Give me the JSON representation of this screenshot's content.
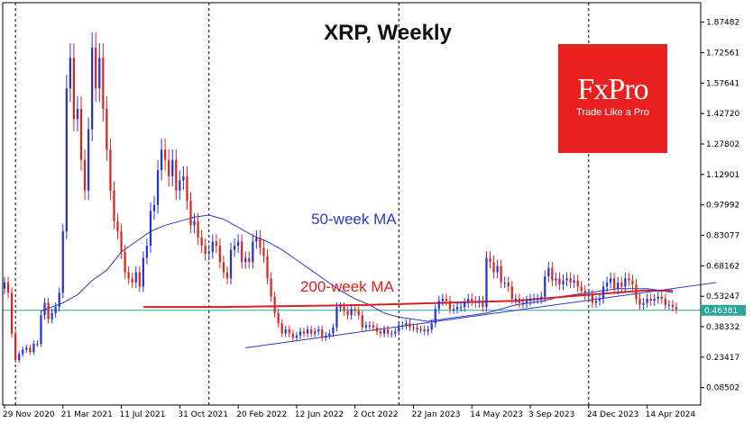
{
  "chart_data": {
    "type": "candlestick",
    "title": "XRP, Weekly",
    "xlabel": "",
    "ylabel": "",
    "colors": {
      "up": "#2433d6",
      "down": "#e0221c",
      "ma50": "#2b3ac4",
      "ma200": "#d92121",
      "current_line": "#2aa79a",
      "trendline": "#2b3ac4"
    },
    "ylim": [
      0.0,
      1.97
    ],
    "y_ticks": [
      {
        "value": 1.87482,
        "label": "1.87482"
      },
      {
        "value": 1.72561,
        "label": "1.72561"
      },
      {
        "value": 1.57641,
        "label": "1.57641"
      },
      {
        "value": 1.4272,
        "label": "1.42720"
      },
      {
        "value": 1.27802,
        "label": "1.27802"
      },
      {
        "value": 1.12901,
        "label": "1.12901"
      },
      {
        "value": 0.97992,
        "label": "0.97992"
      },
      {
        "value": 0.83077,
        "label": "0.83077"
      },
      {
        "value": 0.68162,
        "label": "0.68162"
      },
      {
        "value": 0.53247,
        "label": "0.53247"
      },
      {
        "value": 0.38332,
        "label": "0.38332"
      },
      {
        "value": 0.23417,
        "label": "0.23417"
      },
      {
        "value": 0.08502,
        "label": "0.08502"
      }
    ],
    "x_labels": [
      "29 Nov 2020",
      "21 Mar 2021",
      "11 Jul 2021",
      "31 Oct 2021",
      "20 Feb 2022",
      "12 Jun 2022",
      "2 Oct 2022",
      "22 Jan 2023",
      "14 May 2023",
      "3 Sep 2023",
      "24 Dec 2023",
      "14 Apr 2024"
    ],
    "x_label_weeks": [
      0,
      16,
      32,
      48,
      64,
      80,
      96,
      112,
      128,
      144,
      160,
      176
    ],
    "year_separators": [
      3,
      56,
      108,
      160
    ],
    "current_price": {
      "value": 0.46381,
      "label": "0.46381"
    },
    "annotations": [
      {
        "text": "50-week MA",
        "week": 84,
        "value": 0.885,
        "color": "ma50"
      },
      {
        "text": "200-week MA",
        "week": 81,
        "value": 0.555,
        "color": "ma200"
      }
    ],
    "close": [
      0.6,
      0.55,
      0.35,
      0.22,
      0.25,
      0.27,
      0.28,
      0.26,
      0.3,
      0.3,
      0.44,
      0.5,
      0.42,
      0.45,
      0.48,
      0.55,
      0.85,
      1.55,
      1.7,
      1.4,
      1.45,
      1.2,
      1.05,
      1.35,
      1.75,
      1.55,
      1.7,
      1.45,
      1.25,
      1.05,
      0.9,
      0.85,
      0.75,
      0.65,
      0.62,
      0.6,
      0.65,
      0.58,
      0.72,
      0.78,
      0.95,
      0.98,
      1.15,
      1.25,
      1.2,
      1.12,
      1.2,
      1.05,
      1.1,
      1.12,
      1.0,
      0.88,
      0.9,
      0.82,
      0.78,
      0.74,
      0.75,
      0.8,
      0.78,
      0.7,
      0.65,
      0.62,
      0.76,
      0.78,
      0.8,
      0.7,
      0.72,
      0.7,
      0.8,
      0.82,
      0.77,
      0.73,
      0.62,
      0.53,
      0.45,
      0.4,
      0.35,
      0.37,
      0.35,
      0.33,
      0.34,
      0.36,
      0.35,
      0.37,
      0.35,
      0.36,
      0.37,
      0.33,
      0.34,
      0.35,
      0.38,
      0.48,
      0.48,
      0.46,
      0.44,
      0.47,
      0.46,
      0.44,
      0.38,
      0.39,
      0.39,
      0.38,
      0.36,
      0.35,
      0.37,
      0.35,
      0.35,
      0.36,
      0.39,
      0.39,
      0.4,
      0.38,
      0.38,
      0.37,
      0.37,
      0.36,
      0.37,
      0.4,
      0.47,
      0.51,
      0.52,
      0.51,
      0.47,
      0.47,
      0.48,
      0.48,
      0.5,
      0.52,
      0.51,
      0.5,
      0.51,
      0.48,
      0.72,
      0.7,
      0.65,
      0.68,
      0.6,
      0.6,
      0.58,
      0.52,
      0.52,
      0.5,
      0.5,
      0.51,
      0.52,
      0.52,
      0.52,
      0.53,
      0.63,
      0.67,
      0.61,
      0.62,
      0.59,
      0.61,
      0.62,
      0.6,
      0.61,
      0.58,
      0.56,
      0.54,
      0.54,
      0.5,
      0.51,
      0.52,
      0.58,
      0.6,
      0.62,
      0.57,
      0.6,
      0.58,
      0.62,
      0.61,
      0.59,
      0.52,
      0.49,
      0.5,
      0.52,
      0.51,
      0.52,
      0.53,
      0.52,
      0.49,
      0.49,
      0.48,
      0.47
    ],
    "ma50": [
      [
        10,
        0.46
      ],
      [
        16,
        0.5
      ],
      [
        20,
        0.54
      ],
      [
        24,
        0.61
      ],
      [
        28,
        0.66
      ],
      [
        32,
        0.75
      ],
      [
        36,
        0.8
      ],
      [
        40,
        0.85
      ],
      [
        44,
        0.88
      ],
      [
        48,
        0.9
      ],
      [
        52,
        0.92
      ],
      [
        56,
        0.93
      ],
      [
        60,
        0.91
      ],
      [
        64,
        0.87
      ],
      [
        68,
        0.83
      ],
      [
        72,
        0.8
      ],
      [
        76,
        0.76
      ],
      [
        80,
        0.71
      ],
      [
        84,
        0.66
      ],
      [
        88,
        0.61
      ],
      [
        92,
        0.56
      ],
      [
        96,
        0.52
      ],
      [
        100,
        0.49
      ],
      [
        104,
        0.45
      ],
      [
        108,
        0.43
      ],
      [
        112,
        0.42
      ],
      [
        116,
        0.41
      ],
      [
        120,
        0.42
      ],
      [
        124,
        0.43
      ],
      [
        128,
        0.44
      ],
      [
        132,
        0.45
      ],
      [
        136,
        0.47
      ],
      [
        140,
        0.49
      ],
      [
        144,
        0.5
      ],
      [
        148,
        0.51
      ],
      [
        152,
        0.53
      ],
      [
        156,
        0.54
      ],
      [
        160,
        0.55
      ],
      [
        164,
        0.56
      ],
      [
        168,
        0.57
      ],
      [
        172,
        0.57
      ],
      [
        176,
        0.57
      ],
      [
        180,
        0.56
      ],
      [
        183,
        0.55
      ]
    ],
    "ma200": [
      [
        38,
        0.48
      ],
      [
        60,
        0.48
      ],
      [
        80,
        0.485
      ],
      [
        100,
        0.49
      ],
      [
        120,
        0.5
      ],
      [
        140,
        0.51
      ],
      [
        160,
        0.54
      ],
      [
        175,
        0.56
      ],
      [
        183,
        0.56
      ]
    ],
    "trendline": [
      [
        66,
        0.28
      ],
      [
        195,
        0.6
      ]
    ]
  },
  "branding": {
    "name": "FxPro",
    "tagline": "Trade Like a Pro"
  }
}
